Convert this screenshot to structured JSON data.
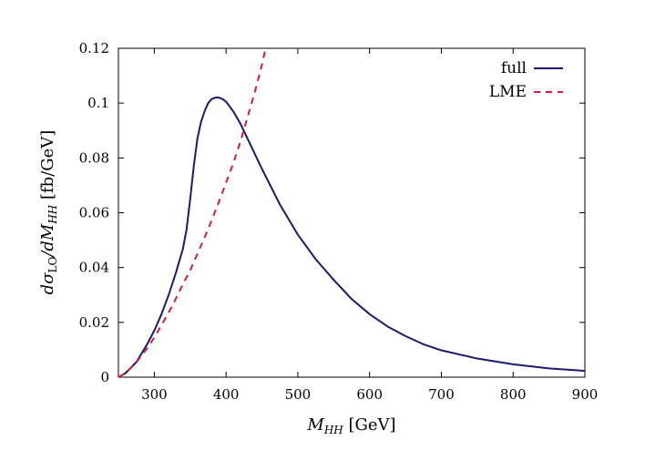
{
  "chart_data": {
    "type": "line",
    "title": "",
    "xlabel": {
      "sym": "M",
      "sub": "HH",
      "unit": " [GeV]"
    },
    "ylabel": {
      "d1": "d",
      "sigma": "σ",
      "sub": "LO",
      "slash": "/d",
      "M": "M",
      "sub2": "HH",
      "unit": " [fb/GeV]"
    },
    "xlim": [
      250,
      900
    ],
    "ylim": [
      0,
      0.12
    ],
    "x_ticks": [
      300,
      400,
      500,
      600,
      700,
      800,
      900
    ],
    "y_ticks": [
      0,
      0.02,
      0.04,
      0.06,
      0.08,
      0.1,
      0.12
    ],
    "x_tick_labels": [
      "300",
      "400",
      "500",
      "600",
      "700",
      "800",
      "900"
    ],
    "y_tick_labels": [
      "0",
      "0.02",
      "0.04",
      "0.06",
      "0.08",
      "0.1",
      "0.12"
    ],
    "grid": false,
    "legend_position": "top-right",
    "series": [
      {
        "name": "full",
        "color": "#1a1a6e",
        "style": "solid",
        "x": [
          250,
          260,
          275,
          290,
          300,
          310,
          320,
          330,
          340,
          345,
          350,
          355,
          360,
          365,
          370,
          375,
          380,
          385,
          390,
          395,
          400,
          410,
          420,
          430,
          440,
          450,
          475,
          500,
          525,
          550,
          575,
          600,
          625,
          650,
          675,
          700,
          750,
          800,
          850,
          900
        ],
        "y": [
          0.0,
          0.0015,
          0.0055,
          0.012,
          0.017,
          0.023,
          0.03,
          0.038,
          0.047,
          0.054,
          0.065,
          0.077,
          0.087,
          0.093,
          0.097,
          0.1,
          0.1015,
          0.102,
          0.102,
          0.1015,
          0.1005,
          0.097,
          0.0925,
          0.087,
          0.0815,
          0.076,
          0.063,
          0.052,
          0.043,
          0.0355,
          0.0285,
          0.023,
          0.0185,
          0.015,
          0.012,
          0.0098,
          0.0068,
          0.0047,
          0.0032,
          0.0023
        ]
      },
      {
        "name": "LME",
        "color": "#d81b3c",
        "style": "dashed",
        "x": [
          250,
          260,
          275,
          290,
          300,
          310,
          325,
          340,
          350,
          360,
          375,
          390,
          400,
          410,
          420,
          430,
          440,
          450,
          455
        ],
        "y": [
          0.0,
          0.0015,
          0.0055,
          0.0105,
          0.0145,
          0.019,
          0.026,
          0.034,
          0.039,
          0.045,
          0.054,
          0.064,
          0.071,
          0.078,
          0.086,
          0.095,
          0.104,
          0.114,
          0.12
        ]
      }
    ]
  }
}
